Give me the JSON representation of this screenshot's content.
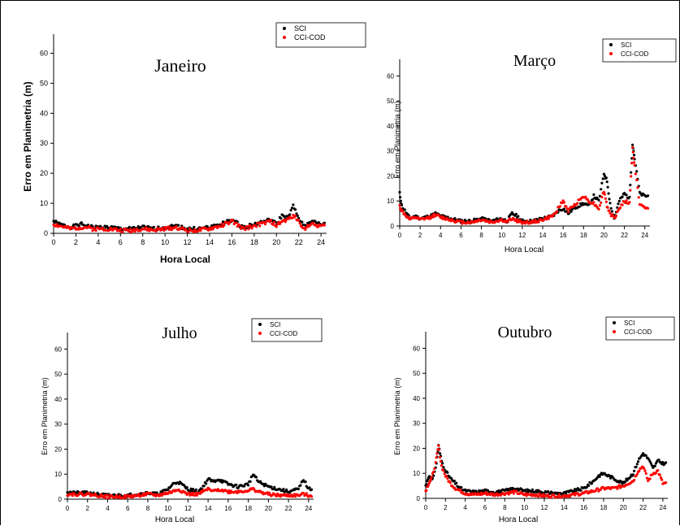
{
  "colors": {
    "sci": "#000000",
    "cci_cod": "#ff0000"
  },
  "chart_data": [
    {
      "type": "scatter",
      "title": "Janeiro",
      "xlabel": "Hora Local",
      "ylabel": "Erro em Planimetria (m)",
      "xlim": [
        0,
        24.5
      ],
      "ylim": [
        0,
        65
      ],
      "xticks": [
        0,
        2,
        4,
        6,
        8,
        10,
        12,
        14,
        16,
        18,
        20,
        22,
        24
      ],
      "yticks": [
        0,
        10,
        20,
        30,
        40,
        50,
        60
      ],
      "legend_position": "top-right",
      "series": [
        {
          "name": "SCI",
          "color": "#000000",
          "x": [
            0,
            0.5,
            1,
            1.5,
            2.5,
            3,
            3.5,
            4,
            5,
            6,
            7,
            8,
            9,
            10,
            11,
            12,
            13,
            14,
            15,
            16,
            17,
            18,
            19,
            19.5,
            20,
            20.5,
            21,
            21.5,
            22,
            22.5,
            23,
            24
          ],
          "y": [
            4,
            3,
            2.5,
            2,
            3,
            2.5,
            2,
            2,
            2,
            1.5,
            1.5,
            2,
            1.5,
            2,
            2.5,
            1.5,
            1.5,
            2,
            3,
            4.5,
            2,
            3,
            4,
            4.5,
            3,
            6,
            5,
            9,
            5,
            2,
            4,
            3
          ]
        },
        {
          "name": "CCI-COD",
          "color": "#ff0000",
          "x": [
            0,
            0.5,
            1,
            1.5,
            2.5,
            3,
            3.5,
            4,
            5,
            6,
            7,
            8,
            9,
            10,
            11,
            12,
            13,
            14,
            15,
            16,
            17,
            18,
            19,
            19.5,
            20,
            20.5,
            21,
            21.5,
            22,
            22.5,
            23,
            24
          ],
          "y": [
            3,
            2.5,
            2,
            1.5,
            2,
            2,
            1.5,
            1.5,
            1.5,
            1,
            1,
            1.5,
            1,
            1.5,
            2,
            1,
            1,
            1.5,
            2.5,
            4,
            1.5,
            2.5,
            3.5,
            4,
            2.5,
            4,
            4.5,
            6,
            4,
            1.5,
            3,
            2.5
          ]
        }
      ]
    },
    {
      "type": "scatter",
      "title": "Março",
      "xlabel": "Hora Local",
      "ylabel": "Erro em Planimetria (m)",
      "xlim": [
        0,
        24.5
      ],
      "ylim": [
        0,
        65
      ],
      "xticks": [
        0,
        2,
        4,
        6,
        8,
        10,
        12,
        14,
        16,
        18,
        20,
        22,
        24
      ],
      "yticks": [
        0,
        10,
        20,
        30,
        40,
        50,
        60
      ],
      "legend_position": "top-right",
      "series": [
        {
          "name": "SCI",
          "color": "#000000",
          "x": [
            0,
            0.2,
            1,
            1.5,
            2,
            3,
            3.5,
            4,
            5,
            6,
            7,
            8,
            9,
            10,
            10.5,
            11,
            11.5,
            12,
            13,
            14,
            15,
            15.5,
            16,
            16.5,
            17,
            18,
            18.5,
            19,
            19.5,
            20,
            20.3,
            20.6,
            21,
            21.5,
            22,
            22.5,
            22.8,
            23,
            23.5,
            24
          ],
          "y": [
            13,
            8,
            3,
            4,
            3,
            4,
            5,
            4,
            3,
            2,
            2,
            3,
            2,
            3,
            2,
            5,
            4,
            2,
            2,
            3,
            4,
            6,
            7,
            5,
            7,
            9,
            8,
            12,
            10,
            21,
            18,
            9,
            3,
            10,
            13,
            11,
            33,
            27,
            13,
            12
          ]
        },
        {
          "name": "CCI-COD",
          "color": "#ff0000",
          "x": [
            0,
            0.2,
            1,
            1.5,
            2,
            3,
            3.5,
            4,
            5,
            6,
            7,
            8,
            9,
            10,
            10.5,
            11,
            11.5,
            12,
            13,
            14,
            15,
            15.5,
            16,
            16.5,
            17,
            18,
            18.5,
            19,
            19.5,
            20,
            20.3,
            20.6,
            21,
            21.5,
            22,
            22.5,
            22.8,
            23,
            23.5,
            24
          ],
          "y": [
            8,
            6,
            2.5,
            3.5,
            2.5,
            3.5,
            4.5,
            3.5,
            2.5,
            1.5,
            1.5,
            2.5,
            1.5,
            2.5,
            1.5,
            3,
            2,
            1.5,
            1.5,
            2.5,
            4,
            7,
            10,
            6,
            8,
            12,
            10,
            9,
            7,
            14,
            8,
            5,
            3,
            7,
            10,
            9,
            31,
            24,
            9,
            7
          ]
        }
      ]
    },
    {
      "type": "scatter",
      "title": "Julho",
      "xlabel": "Hora Local",
      "ylabel": "Erro em Planimetria (m)",
      "xlim": [
        0,
        24.5
      ],
      "ylim": [
        0,
        65
      ],
      "xticks": [
        0,
        2,
        4,
        6,
        8,
        10,
        12,
        14,
        16,
        18,
        20,
        22,
        24
      ],
      "yticks": [
        0,
        10,
        20,
        30,
        40,
        50,
        60
      ],
      "legend_position": "top-right",
      "series": [
        {
          "name": "SCI",
          "color": "#000000",
          "x": [
            0,
            0.5,
            1,
            2,
            3,
            4,
            5,
            6,
            7,
            8,
            9,
            10,
            10.5,
            11,
            12,
            13,
            13.5,
            14,
            14.5,
            15,
            16,
            17,
            18,
            18.5,
            19,
            20,
            21,
            22,
            23,
            23.5,
            24
          ],
          "y": [
            3,
            2.5,
            2.5,
            2.5,
            2,
            1.5,
            1.5,
            1.5,
            2,
            2.5,
            2,
            4,
            6,
            7,
            4,
            3,
            5,
            8,
            7,
            8,
            6,
            5,
            6,
            10,
            7,
            5,
            4,
            3,
            4,
            8,
            4
          ]
        },
        {
          "name": "CCI-COD",
          "color": "#ff0000",
          "x": [
            0,
            0.5,
            1,
            2,
            3,
            4,
            5,
            6,
            7,
            8,
            9,
            10,
            10.5,
            11,
            12,
            13,
            13.5,
            14,
            14.5,
            15,
            16,
            17,
            18,
            18.5,
            19,
            20,
            21,
            22,
            23,
            23.5,
            24
          ],
          "y": [
            2,
            2,
            2,
            2,
            1.5,
            1,
            1,
            1,
            1.5,
            2,
            1.5,
            2.5,
            3,
            4,
            2,
            2,
            3,
            4,
            3,
            4,
            3,
            3,
            3.5,
            4,
            3,
            2,
            1.5,
            1.5,
            1.5,
            2,
            1.5
          ]
        }
      ]
    },
    {
      "type": "scatter",
      "title": "Outubro",
      "xlabel": "Hora Local",
      "ylabel": "Erro em Planimetria (m)",
      "xlim": [
        0,
        24.5
      ],
      "ylim": [
        0,
        65
      ],
      "xticks": [
        0,
        2,
        4,
        6,
        8,
        10,
        12,
        14,
        16,
        18,
        20,
        22,
        24
      ],
      "yticks": [
        0,
        10,
        20,
        30,
        40,
        50,
        60
      ],
      "legend_position": "top-right",
      "series": [
        {
          "name": "SCI",
          "color": "#000000",
          "x": [
            0,
            0.3,
            0.6,
            1,
            1.3,
            1.6,
            2,
            2.5,
            3,
            3.5,
            4,
            5,
            6,
            7,
            8,
            9,
            10,
            11,
            12,
            13,
            14,
            15,
            16,
            17,
            17.5,
            18,
            19,
            20,
            21,
            21.5,
            22,
            22.5,
            23,
            23.5,
            24
          ],
          "y": [
            5,
            9,
            7,
            12,
            21,
            15,
            11,
            8,
            6,
            4,
            3,
            2.5,
            3,
            2.5,
            3,
            4,
            3,
            3,
            2.5,
            2,
            2,
            3,
            4,
            7,
            9,
            10,
            8,
            6,
            10,
            15,
            18,
            16,
            12,
            15,
            14
          ]
        },
        {
          "name": "CCI-COD",
          "color": "#ff0000",
          "x": [
            0,
            0.3,
            0.6,
            1,
            1.3,
            1.6,
            2,
            2.5,
            3,
            3.5,
            4,
            5,
            6,
            7,
            8,
            9,
            10,
            11,
            12,
            13,
            14,
            15,
            16,
            17,
            17.5,
            18,
            19,
            20,
            21,
            21.5,
            22,
            22.5,
            23,
            23.5,
            24
          ],
          "y": [
            3,
            6,
            8,
            14,
            21,
            13,
            9,
            6,
            4,
            3,
            2,
            1.5,
            2,
            1.5,
            2,
            2.5,
            1.5,
            1.5,
            1,
            1,
            1,
            1.5,
            2,
            3,
            3.5,
            4,
            4,
            5,
            7,
            11,
            13,
            7,
            10,
            11,
            6
          ]
        }
      ]
    }
  ]
}
